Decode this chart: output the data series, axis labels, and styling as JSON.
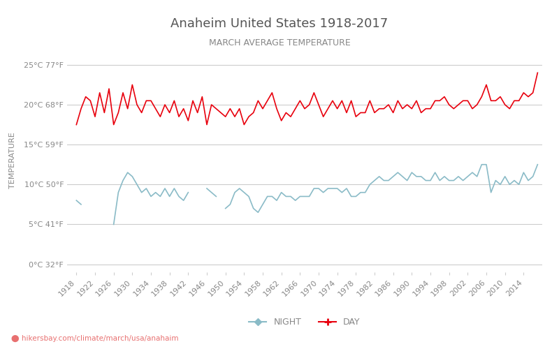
{
  "title": "Anaheim United States 1918-2017",
  "subtitle": "MARCH AVERAGE TEMPERATURE",
  "ylabel": "TEMPERATURE",
  "xlabel_url": "hikersbay.com/climate/march/usa/anahaim",
  "years": [
    1918,
    1919,
    1920,
    1921,
    1922,
    1923,
    1924,
    1925,
    1926,
    1927,
    1928,
    1929,
    1930,
    1931,
    1932,
    1933,
    1934,
    1935,
    1936,
    1937,
    1938,
    1939,
    1940,
    1941,
    1942,
    1943,
    1944,
    1945,
    1946,
    1947,
    1948,
    1949,
    1950,
    1951,
    1952,
    1953,
    1954,
    1955,
    1956,
    1957,
    1958,
    1959,
    1960,
    1961,
    1962,
    1963,
    1964,
    1965,
    1966,
    1967,
    1968,
    1969,
    1970,
    1971,
    1972,
    1973,
    1974,
    1975,
    1976,
    1977,
    1978,
    1979,
    1980,
    1981,
    1982,
    1983,
    1984,
    1985,
    1986,
    1987,
    1988,
    1989,
    1990,
    1991,
    1992,
    1993,
    1994,
    1995,
    1996,
    1997,
    1998,
    1999,
    2000,
    2001,
    2002,
    2003,
    2004,
    2005,
    2006,
    2007,
    2008,
    2009,
    2010,
    2011,
    2012,
    2013,
    2014,
    2015,
    2016,
    2017
  ],
  "day_temps": [
    17.5,
    19.5,
    21.0,
    20.5,
    18.5,
    21.5,
    19.0,
    22.0,
    17.5,
    19.0,
    21.5,
    19.5,
    22.5,
    20.0,
    19.0,
    20.5,
    20.5,
    19.5,
    18.5,
    20.0,
    19.0,
    20.5,
    18.5,
    19.5,
    18.0,
    20.5,
    19.0,
    21.0,
    17.5,
    20.0,
    19.5,
    19.0,
    18.5,
    19.5,
    18.5,
    19.5,
    17.5,
    18.5,
    19.0,
    20.5,
    19.5,
    20.5,
    21.5,
    19.5,
    18.0,
    19.0,
    18.5,
    19.5,
    20.5,
    19.5,
    20.0,
    21.5,
    20.0,
    18.5,
    19.5,
    20.5,
    19.5,
    20.5,
    19.0,
    20.5,
    18.5,
    19.0,
    19.0,
    20.5,
    19.0,
    19.5,
    19.5,
    20.0,
    19.0,
    20.5,
    19.5,
    20.0,
    19.5,
    20.5,
    19.0,
    19.5,
    19.5,
    20.5,
    20.5,
    21.0,
    20.0,
    19.5,
    20.0,
    20.5,
    20.5,
    19.5,
    20.0,
    21.0,
    22.5,
    20.5,
    20.5,
    21.0,
    20.0,
    19.5,
    20.5,
    20.5,
    21.5,
    21.0,
    21.5,
    24.0
  ],
  "night_temps": [
    8.0,
    7.5,
    null,
    null,
    null,
    null,
    null,
    null,
    5.0,
    9.0,
    10.5,
    11.5,
    11.0,
    10.0,
    9.0,
    9.5,
    8.5,
    9.0,
    8.5,
    9.5,
    8.5,
    9.5,
    8.5,
    8.0,
    9.0,
    null,
    null,
    null,
    9.5,
    9.0,
    8.5,
    null,
    7.0,
    7.5,
    9.0,
    9.5,
    9.0,
    8.5,
    7.0,
    6.5,
    7.5,
    8.5,
    8.5,
    8.0,
    9.0,
    8.5,
    8.5,
    8.0,
    8.5,
    8.5,
    8.5,
    9.5,
    9.5,
    9.0,
    9.5,
    9.5,
    9.5,
    9.0,
    9.5,
    8.5,
    8.5,
    9.0,
    9.0,
    10.0,
    10.5,
    11.0,
    10.5,
    10.5,
    11.0,
    11.5,
    11.0,
    10.5,
    11.5,
    11.0,
    11.0,
    10.5,
    10.5,
    11.5,
    10.5,
    11.0,
    10.5,
    10.5,
    11.0,
    10.5,
    11.0,
    11.5,
    11.0,
    12.5,
    12.5,
    9.0,
    10.5,
    10.0,
    11.0,
    10.0,
    10.5,
    10.0,
    11.5,
    10.5,
    11.0,
    12.5
  ],
  "y_ticks_c": [
    0,
    5,
    10,
    15,
    20,
    25
  ],
  "y_ticks_f": [
    32,
    41,
    50,
    59,
    68,
    77
  ],
  "x_ticks": [
    1918,
    1922,
    1926,
    1930,
    1934,
    1938,
    1942,
    1946,
    1950,
    1954,
    1958,
    1962,
    1966,
    1970,
    1974,
    1978,
    1982,
    1986,
    1990,
    1994,
    1998,
    2002,
    2006,
    2010,
    2014
  ],
  "ylim": [
    -1,
    27
  ],
  "day_color": "#e8000d",
  "night_color": "#8abbc7",
  "grid_color": "#cccccc",
  "title_color": "#555555",
  "subtitle_color": "#888888",
  "ylabel_color": "#888888",
  "tick_color": "#888888",
  "url_color": "#e87070",
  "bg_color": "#ffffff"
}
